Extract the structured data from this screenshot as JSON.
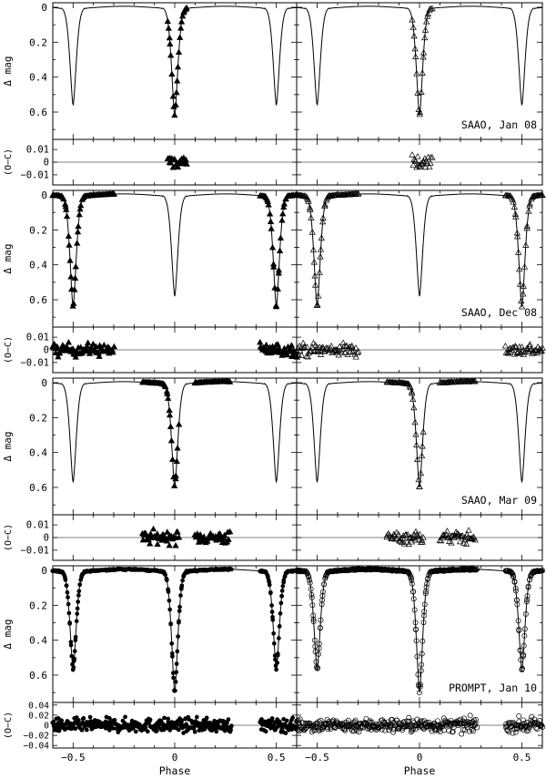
{
  "chart_data": {
    "type": "scatter",
    "xlabel": "Phase",
    "x_range": [
      -0.6,
      0.6
    ],
    "x_ticks": [
      -0.5,
      0,
      0.5
    ],
    "x_tick_labels": [
      "−0.5",
      "0",
      "0.5"
    ],
    "mag_label": "Δ mag",
    "mag_range": [
      0,
      0.72
    ],
    "mag_reversed": true,
    "mag_ticks": [
      0,
      0.2,
      0.4,
      0.6
    ],
    "mag_tick_labels": [
      "0",
      "0.2",
      "0.4",
      "0.6"
    ],
    "resid_label": "(O−C)",
    "columns": [
      {
        "marker": "filled-triangle"
      },
      {
        "marker": "open-triangle"
      }
    ],
    "panels": [
      {
        "label": "SAAO, Jan 08",
        "primary_depth": 0.62,
        "secondary_depth": 0.56,
        "resid_range": [
          -0.018,
          0.018
        ],
        "resid_ticks": [
          0.01,
          0,
          -0.01
        ],
        "resid_tick_labels": [
          "0.01",
          "0",
          "−0.01"
        ],
        "obs_phase_ranges": [
          [
            -0.035,
            0.06
          ]
        ],
        "resid_scatter": 0.005,
        "markers": [
          "filled-triangle",
          "open-triangle"
        ]
      },
      {
        "label": "SAAO, Dec 08",
        "primary_depth": 0.58,
        "secondary_depth": 0.64,
        "resid_range": [
          -0.018,
          0.018
        ],
        "resid_ticks": [
          0.01,
          0,
          -0.01
        ],
        "resid_tick_labels": [
          "0.01",
          "0",
          "−0.01"
        ],
        "obs_phase_ranges": [
          [
            -0.6,
            -0.3
          ],
          [
            0.42,
            0.6
          ]
        ],
        "resid_scatter": 0.005,
        "markers": [
          "filled-triangle",
          "open-triangle"
        ]
      },
      {
        "label": "SAAO, Mar 09",
        "primary_depth": 0.6,
        "secondary_depth": 0.57,
        "resid_range": [
          -0.018,
          0.018
        ],
        "resid_ticks": [
          0.01,
          0,
          -0.01
        ],
        "resid_tick_labels": [
          "0.01",
          "0",
          "−0.01"
        ],
        "obs_phase_ranges": [
          [
            -0.16,
            0.02
          ],
          [
            0.1,
            0.27
          ]
        ],
        "resid_scatter": 0.005,
        "markers": [
          "filled-triangle",
          "open-triangle"
        ]
      },
      {
        "label": "PROMPT, Jan 10",
        "primary_depth": 0.7,
        "secondary_depth": 0.57,
        "resid_range": [
          -0.045,
          0.045
        ],
        "resid_ticks": [
          0.04,
          0.02,
          0,
          -0.02,
          -0.04
        ],
        "resid_tick_labels": [
          "0.04",
          "0.02",
          "0",
          "−0.02",
          "−0.04"
        ],
        "obs_phase_ranges": [
          [
            -0.6,
            0.28
          ],
          [
            0.42,
            0.6
          ]
        ],
        "resid_scatter": 0.013,
        "markers": [
          "filled-circle",
          "open-circle"
        ]
      }
    ]
  }
}
